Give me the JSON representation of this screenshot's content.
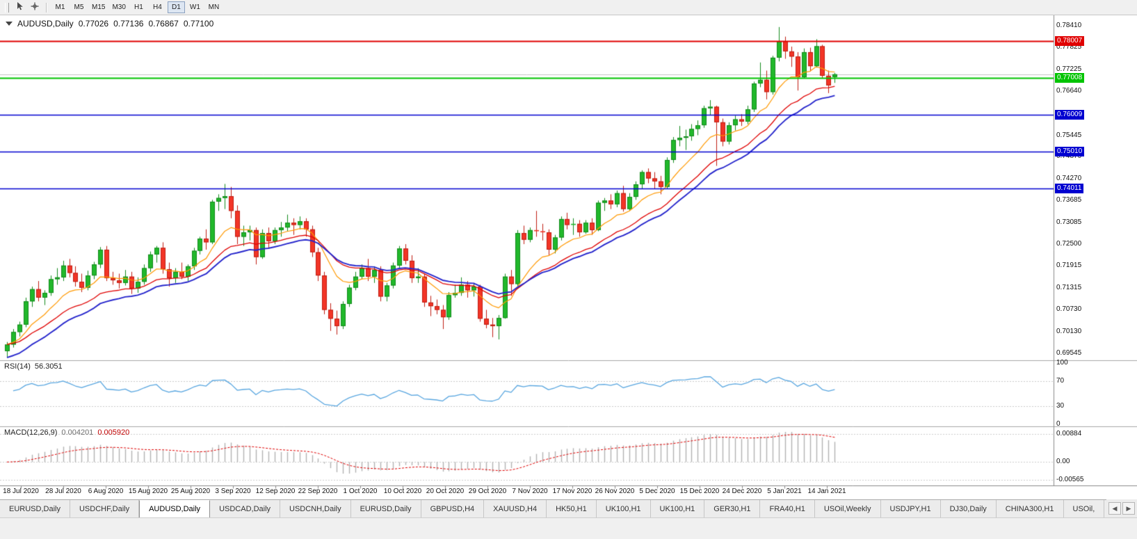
{
  "toolbar": {
    "timeframes": [
      "M1",
      "M5",
      "M15",
      "M30",
      "H1",
      "H4",
      "D1",
      "W1",
      "MN"
    ],
    "active_timeframe": "D1"
  },
  "chart": {
    "symbol_title": "AUDUSD,Daily",
    "open": "0.77026",
    "high": "0.77136",
    "low": "0.76867",
    "close": "0.77100",
    "hlines": [
      {
        "label": "0.78007",
        "color": "#e00000",
        "width": 2
      },
      {
        "label": "0.77008",
        "color": "#00c400",
        "width": 2
      },
      {
        "label": "0.76009",
        "color": "#0000d0",
        "width": 1.5
      },
      {
        "label": "0.75010",
        "color": "#0000d0",
        "width": 1.5
      },
      {
        "label": "0.74011",
        "color": "#0000d0",
        "width": 1.5
      }
    ],
    "date_labels": [
      "18 Jul 2020",
      "28 Jul 2020",
      "6 Aug 2020",
      "15 Aug 2020",
      "25 Aug 2020",
      "3 Sep 2020",
      "12 Sep 2020",
      "22 Sep 2020",
      "1 Oct 2020",
      "10 Oct 2020",
      "20 Oct 2020",
      "29 Oct 2020",
      "7 Nov 2020",
      "17 Nov 2020",
      "26 Nov 2020",
      "5 Dec 2020",
      "15 Dec 2020",
      "24 Dec 2020",
      "5 Jan 2021",
      "14 Jan 2021"
    ]
  },
  "rsi": {
    "label": "RSI(14)",
    "value": "56.3051",
    "scale_labels": [
      "100",
      "70",
      "30",
      "0"
    ],
    "levels": [
      70,
      30
    ]
  },
  "macd": {
    "label": "MACD(12,26,9)",
    "value_main": "0.004201",
    "value_signal": "0.005920",
    "scale_labels": [
      "0.00884",
      "0.00",
      "-0.00565"
    ]
  },
  "tabs": {
    "items": [
      "EURUSD,Daily",
      "USDCHF,Daily",
      "AUDUSD,Daily",
      "USDCAD,Daily",
      "USDCNH,Daily",
      "EURUSD,Daily",
      "GBPUSD,H4",
      "XAUUSD,H4",
      "HK50,H1",
      "UK100,H1",
      "UK100,H1",
      "GER30,H1",
      "FRA40,H1",
      "USOil,Weekly",
      "USDJPY,H1",
      "DJ30,Daily",
      "CHINA300,H1",
      "USOil,"
    ],
    "active_index": 2,
    "scroll_left_glyph": "◀",
    "scroll_right_glyph": "▶"
  },
  "chart_data": {
    "type": "candlestick",
    "symbol": "AUDUSD",
    "timeframe": "Daily",
    "title": "AUDUSD,Daily 0.77026 0.77136 0.76867 0.77100",
    "current_price": 0.771,
    "price_axis": {
      "min": 0.6943,
      "max": 0.7866,
      "tick_labels": [
        "0.78410",
        "0.77825",
        "0.77225",
        "0.76640",
        "0.75445",
        "0.74870",
        "0.74270",
        "0.73685",
        "0.73085",
        "0.72500",
        "0.71915",
        "0.71315",
        "0.70730",
        "0.70130",
        "0.69545"
      ]
    },
    "colors": {
      "up": "#21b82b",
      "up_edge": "#128a1b",
      "down": "#f23527",
      "down_edge": "#bf1d12",
      "rsi_line": "#58a6e0",
      "macd_hist": "#b2b2b2",
      "macd_signal": "#e00000",
      "current_price_line": "#c4c4c4"
    },
    "moving_averages": [
      {
        "name": "fast",
        "period": 10,
        "color": "#ff9900"
      },
      {
        "name": "mid",
        "period": 20,
        "color": "#e00000"
      },
      {
        "name": "slow",
        "period": 25,
        "color": "#2525cc",
        "seed": 0.694
      }
    ],
    "indicators": {
      "rsi": {
        "period": 14,
        "current": 56.3051,
        "levels": [
          70,
          30
        ]
      },
      "macd": {
        "fast": 12,
        "slow": 26,
        "signal": 9,
        "current_main": 0.004201,
        "current_signal": 0.00592
      }
    },
    "candles_ohlc": [
      [
        0.696,
        0.6985,
        0.6945,
        0.6978
      ],
      [
        0.6978,
        0.702,
        0.697,
        0.7012
      ],
      [
        0.7012,
        0.704,
        0.7,
        0.7032
      ],
      [
        0.7032,
        0.7105,
        0.7025,
        0.7095
      ],
      [
        0.7095,
        0.7135,
        0.708,
        0.7128
      ],
      [
        0.7128,
        0.715,
        0.7095,
        0.7105
      ],
      [
        0.7105,
        0.7125,
        0.7085,
        0.7118
      ],
      [
        0.7118,
        0.7165,
        0.711,
        0.7155
      ],
      [
        0.7155,
        0.7185,
        0.714,
        0.716
      ],
      [
        0.716,
        0.7205,
        0.715,
        0.7192
      ],
      [
        0.7192,
        0.721,
        0.716,
        0.7172
      ],
      [
        0.7172,
        0.719,
        0.7135,
        0.7148
      ],
      [
        0.7148,
        0.717,
        0.712,
        0.7132
      ],
      [
        0.7132,
        0.7178,
        0.7125,
        0.7165
      ],
      [
        0.7165,
        0.7202,
        0.7155,
        0.7195
      ],
      [
        0.7195,
        0.7242,
        0.7185,
        0.7235
      ],
      [
        0.7235,
        0.7245,
        0.715,
        0.7158
      ],
      [
        0.7158,
        0.7175,
        0.714,
        0.7152
      ],
      [
        0.7152,
        0.717,
        0.713,
        0.7145
      ],
      [
        0.7145,
        0.718,
        0.7138,
        0.7162
      ],
      [
        0.7162,
        0.7175,
        0.7115,
        0.713
      ],
      [
        0.713,
        0.716,
        0.7118,
        0.7148
      ],
      [
        0.7148,
        0.7195,
        0.714,
        0.7185
      ],
      [
        0.7185,
        0.723,
        0.7175,
        0.7222
      ],
      [
        0.7222,
        0.7245,
        0.72,
        0.724
      ],
      [
        0.724,
        0.7255,
        0.717,
        0.7182
      ],
      [
        0.7182,
        0.72,
        0.7135,
        0.7158
      ],
      [
        0.7158,
        0.7185,
        0.7145,
        0.7175
      ],
      [
        0.7175,
        0.72,
        0.7155,
        0.7162
      ],
      [
        0.7162,
        0.7195,
        0.715,
        0.719
      ],
      [
        0.719,
        0.724,
        0.718,
        0.7232
      ],
      [
        0.7232,
        0.727,
        0.7222,
        0.7265
      ],
      [
        0.7265,
        0.729,
        0.7235,
        0.7255
      ],
      [
        0.7255,
        0.737,
        0.725,
        0.7365
      ],
      [
        0.7365,
        0.7385,
        0.734,
        0.7375
      ],
      [
        0.7375,
        0.7413,
        0.7345,
        0.738
      ],
      [
        0.738,
        0.7405,
        0.732,
        0.734
      ],
      [
        0.734,
        0.7355,
        0.725,
        0.727
      ],
      [
        0.727,
        0.73,
        0.7245,
        0.7282
      ],
      [
        0.7282,
        0.73,
        0.726,
        0.7288
      ],
      [
        0.7288,
        0.7295,
        0.7195,
        0.7215
      ],
      [
        0.7215,
        0.729,
        0.721,
        0.728
      ],
      [
        0.728,
        0.7295,
        0.724,
        0.7258
      ],
      [
        0.7258,
        0.7295,
        0.725,
        0.7288
      ],
      [
        0.7288,
        0.731,
        0.727,
        0.7295
      ],
      [
        0.7295,
        0.733,
        0.7285,
        0.7308
      ],
      [
        0.7308,
        0.732,
        0.7275,
        0.7302
      ],
      [
        0.7302,
        0.7325,
        0.729,
        0.7312
      ],
      [
        0.7312,
        0.732,
        0.727,
        0.729
      ],
      [
        0.729,
        0.73,
        0.7215,
        0.7228
      ],
      [
        0.7228,
        0.724,
        0.715,
        0.7165
      ],
      [
        0.7165,
        0.7175,
        0.706,
        0.7072
      ],
      [
        0.7072,
        0.709,
        0.7015,
        0.7048
      ],
      [
        0.7048,
        0.707,
        0.7005,
        0.7028
      ],
      [
        0.7028,
        0.7095,
        0.702,
        0.7088
      ],
      [
        0.7088,
        0.714,
        0.708,
        0.7132
      ],
      [
        0.7132,
        0.7175,
        0.7125,
        0.7162
      ],
      [
        0.7162,
        0.7195,
        0.7155,
        0.7185
      ],
      [
        0.7185,
        0.721,
        0.715,
        0.7162
      ],
      [
        0.7162,
        0.719,
        0.7145,
        0.718
      ],
      [
        0.718,
        0.719,
        0.7095,
        0.7108
      ],
      [
        0.7108,
        0.7145,
        0.7095,
        0.7138
      ],
      [
        0.7138,
        0.72,
        0.713,
        0.7192
      ],
      [
        0.7192,
        0.7245,
        0.7185,
        0.7238
      ],
      [
        0.7238,
        0.725,
        0.7195,
        0.7205
      ],
      [
        0.7205,
        0.722,
        0.7145,
        0.7158
      ],
      [
        0.7158,
        0.7185,
        0.7145,
        0.7162
      ],
      [
        0.7162,
        0.717,
        0.708,
        0.7092
      ],
      [
        0.7092,
        0.711,
        0.7055,
        0.7082
      ],
      [
        0.7082,
        0.71,
        0.706,
        0.7072
      ],
      [
        0.7072,
        0.7085,
        0.702,
        0.7052
      ],
      [
        0.7052,
        0.712,
        0.7045,
        0.7112
      ],
      [
        0.7112,
        0.714,
        0.7105,
        0.7118
      ],
      [
        0.7118,
        0.716,
        0.711,
        0.714
      ],
      [
        0.714,
        0.715,
        0.7105,
        0.7125
      ],
      [
        0.7125,
        0.7145,
        0.7108,
        0.7135
      ],
      [
        0.7135,
        0.714,
        0.704,
        0.7048
      ],
      [
        0.7048,
        0.7072,
        0.7022,
        0.7032
      ],
      [
        0.7032,
        0.705,
        0.6998,
        0.7028
      ],
      [
        0.7028,
        0.7058,
        0.6992,
        0.705
      ],
      [
        0.705,
        0.717,
        0.7048,
        0.7162
      ],
      [
        0.7162,
        0.718,
        0.711,
        0.7142
      ],
      [
        0.7142,
        0.7288,
        0.7135,
        0.728
      ],
      [
        0.728,
        0.73,
        0.725,
        0.7262
      ],
      [
        0.7262,
        0.7295,
        0.7255,
        0.7288
      ],
      [
        0.7288,
        0.734,
        0.727,
        0.7285
      ],
      [
        0.7285,
        0.7305,
        0.726,
        0.7282
      ],
      [
        0.7282,
        0.729,
        0.722,
        0.7235
      ],
      [
        0.7235,
        0.7275,
        0.7225,
        0.7268
      ],
      [
        0.7268,
        0.7325,
        0.726,
        0.7318
      ],
      [
        0.7318,
        0.7335,
        0.729,
        0.7302
      ],
      [
        0.7302,
        0.732,
        0.7275,
        0.7305
      ],
      [
        0.7305,
        0.7315,
        0.727,
        0.7282
      ],
      [
        0.7282,
        0.7315,
        0.7278,
        0.7308
      ],
      [
        0.7308,
        0.732,
        0.7275,
        0.7288
      ],
      [
        0.7288,
        0.7368,
        0.7285,
        0.7362
      ],
      [
        0.7362,
        0.7375,
        0.734,
        0.7368
      ],
      [
        0.7368,
        0.7385,
        0.7345,
        0.7358
      ],
      [
        0.7358,
        0.7395,
        0.735,
        0.7388
      ],
      [
        0.7388,
        0.7408,
        0.7338,
        0.7345
      ],
      [
        0.7345,
        0.7388,
        0.734,
        0.7378
      ],
      [
        0.7378,
        0.742,
        0.737,
        0.7412
      ],
      [
        0.7412,
        0.745,
        0.74,
        0.7445
      ],
      [
        0.7445,
        0.7455,
        0.7415,
        0.7428
      ],
      [
        0.7428,
        0.7445,
        0.74,
        0.742
      ],
      [
        0.742,
        0.7435,
        0.7385,
        0.7405
      ],
      [
        0.7405,
        0.7485,
        0.74,
        0.7478
      ],
      [
        0.7478,
        0.754,
        0.747,
        0.7532
      ],
      [
        0.7532,
        0.757,
        0.7515,
        0.7538
      ],
      [
        0.7538,
        0.756,
        0.7505,
        0.7542
      ],
      [
        0.7542,
        0.7575,
        0.753,
        0.7562
      ],
      [
        0.7562,
        0.7585,
        0.7545,
        0.7572
      ],
      [
        0.7572,
        0.7625,
        0.7565,
        0.7618
      ],
      [
        0.7618,
        0.764,
        0.76,
        0.7622
      ],
      [
        0.7622,
        0.7625,
        0.7462,
        0.758
      ],
      [
        0.758,
        0.759,
        0.7515,
        0.7528
      ],
      [
        0.7528,
        0.758,
        0.752,
        0.7572
      ],
      [
        0.7572,
        0.7598,
        0.7558,
        0.7588
      ],
      [
        0.7588,
        0.7602,
        0.757,
        0.7582
      ],
      [
        0.7582,
        0.7625,
        0.7575,
        0.7615
      ],
      [
        0.7615,
        0.769,
        0.7608,
        0.7685
      ],
      [
        0.7685,
        0.7742,
        0.7675,
        0.7695
      ],
      [
        0.7695,
        0.772,
        0.7642,
        0.7662
      ],
      [
        0.7662,
        0.776,
        0.7655,
        0.7755
      ],
      [
        0.7755,
        0.7838,
        0.7745,
        0.78
      ],
      [
        0.78,
        0.7812,
        0.7752,
        0.7772
      ],
      [
        0.7772,
        0.7785,
        0.773,
        0.7758
      ],
      [
        0.7758,
        0.777,
        0.7666,
        0.7702
      ],
      [
        0.7702,
        0.778,
        0.77,
        0.777
      ],
      [
        0.777,
        0.7782,
        0.7718,
        0.7732
      ],
      [
        0.7732,
        0.7805,
        0.7728,
        0.7786
      ],
      [
        0.7786,
        0.779,
        0.77,
        0.7706
      ],
      [
        0.7706,
        0.772,
        0.7659,
        0.768
      ],
      [
        0.77026,
        0.77136,
        0.76867,
        0.771
      ]
    ]
  }
}
